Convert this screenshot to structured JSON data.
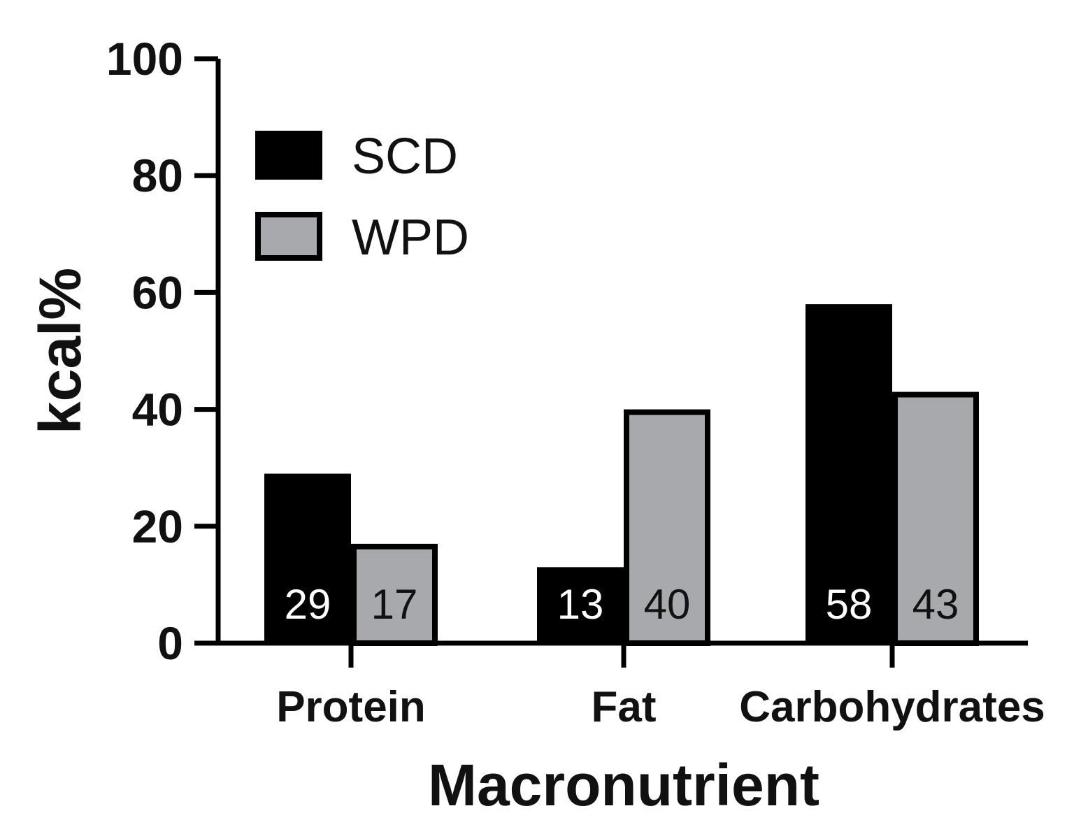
{
  "chart_data": {
    "type": "bar",
    "title": "",
    "xlabel": "Macronutrient",
    "ylabel": "kcal%",
    "ylim": [
      0,
      100
    ],
    "yticks": [
      0,
      20,
      40,
      60,
      80,
      100
    ],
    "categories": [
      "Protein",
      "Fat",
      "Carbohydrates"
    ],
    "series": [
      {
        "name": "SCD",
        "values": [
          29,
          13,
          58
        ],
        "color": "#000000",
        "label_color": "#ffffff"
      },
      {
        "name": "WPD",
        "values": [
          17,
          40,
          43
        ],
        "color": "#a7a9ac",
        "label_color": "#111111"
      }
    ],
    "legend_position": "top-left",
    "grid": false
  }
}
